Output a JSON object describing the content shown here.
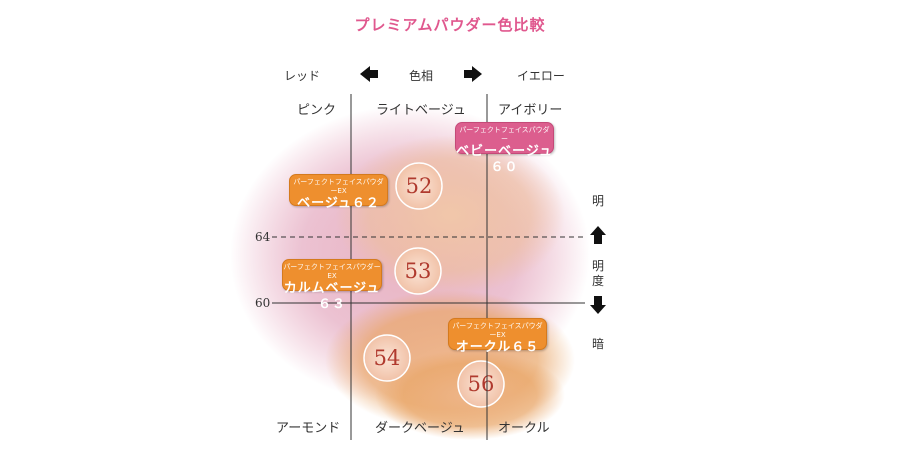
{
  "title": "プレミアムパウダー色比較",
  "axis_hue": {
    "label": "色相",
    "left": "レッド",
    "right": "イエロー"
  },
  "axis_brightness": {
    "bright": "明",
    "label_1": "明",
    "label_2": "度",
    "dark": "暗"
  },
  "columns_top": [
    "ピンク",
    "ライトベージュ",
    "アイボリー"
  ],
  "columns_bottom": [
    "アーモンド",
    "ダークベージュ",
    "オークル"
  ],
  "thresholds": [
    "64",
    "60"
  ],
  "shades": [
    "52",
    "53",
    "54",
    "56"
  ],
  "products": [
    {
      "sub": "パーフェクトフェイスパウダー",
      "name": "ベビーベージュ６０"
    },
    {
      "sub": "パーフェクトフェイスパウダーEX",
      "name": "ベージュ６２"
    },
    {
      "sub": "パーフェクトフェイスパウダーEX",
      "name": "カルムベージュ６３"
    },
    {
      "sub": "パーフェクトフェイスパウダーEX",
      "name": "オークル６５"
    }
  ],
  "colors": {
    "title": "#e0588e",
    "pink_tag": "#dc5e8e",
    "orange_tag": "#ee8f2e",
    "shade_number": "#b03a2e",
    "glow_pink": "#d9779b",
    "glow_orange": "#e9a668"
  },
  "icons": [
    "arrow-left-icon",
    "arrow-right-icon",
    "arrow-up-icon",
    "arrow-down-icon"
  ]
}
